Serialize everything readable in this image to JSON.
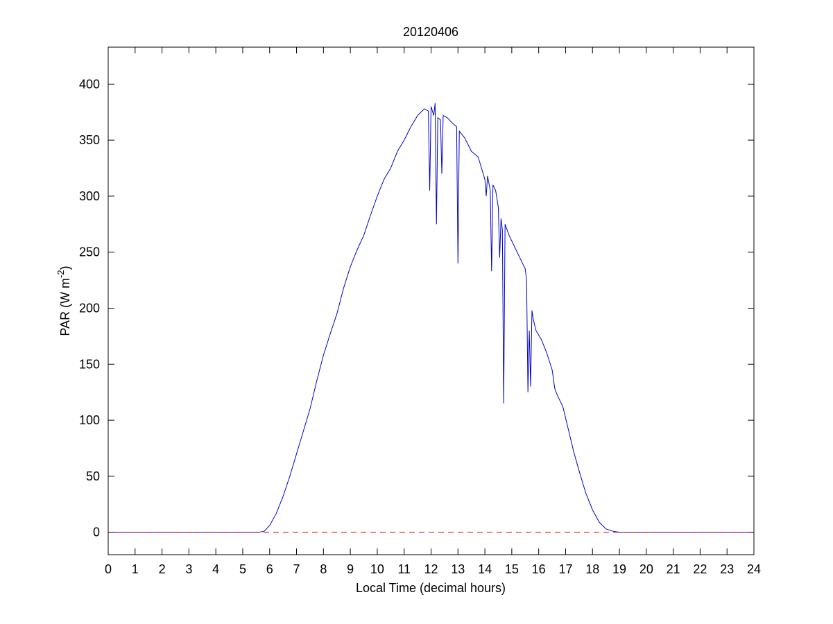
{
  "chart_data": {
    "type": "line",
    "title": "20120406",
    "xlabel": "Local Time (decimal hours)",
    "ylabel_parts": [
      "PAR (W m",
      "-2",
      ")"
    ],
    "x": [
      0,
      1,
      2,
      3,
      4,
      5,
      5.6,
      5.8,
      6,
      6.25,
      6.5,
      6.75,
      7,
      7.25,
      7.5,
      7.75,
      8,
      8.25,
      8.5,
      8.75,
      9,
      9.25,
      9.5,
      9.75,
      10,
      10.25,
      10.5,
      10.75,
      11,
      11.25,
      11.5,
      11.75,
      11.9,
      11.95,
      12,
      12.1,
      12.15,
      12.2,
      12.25,
      12.35,
      12.4,
      12.45,
      12.6,
      12.8,
      12.95,
      13.0,
      13.05,
      13.25,
      13.5,
      13.75,
      14,
      14.05,
      14.1,
      14.2,
      14.25,
      14.3,
      14.4,
      14.5,
      14.55,
      14.6,
      14.65,
      14.7,
      14.75,
      14.9,
      15.1,
      15.3,
      15.5,
      15.55,
      15.6,
      15.65,
      15.7,
      15.75,
      15.8,
      15.9,
      16.1,
      16.3,
      16.5,
      16.6,
      16.7,
      16.9,
      17.1,
      17.3,
      17.5,
      17.75,
      18,
      18.25,
      18.5,
      18.75,
      19,
      20,
      21,
      22,
      23,
      24
    ],
    "values": [
      0,
      0,
      0,
      0,
      0,
      0,
      0,
      1,
      6,
      17,
      32,
      50,
      70,
      90,
      110,
      135,
      158,
      177,
      195,
      218,
      237,
      252,
      265,
      283,
      300,
      315,
      325,
      340,
      350,
      362,
      372,
      378,
      376,
      305,
      380,
      372,
      383,
      275,
      370,
      368,
      320,
      372,
      370,
      365,
      362,
      240,
      358,
      352,
      340,
      335,
      315,
      300,
      318,
      305,
      233,
      310,
      305,
      290,
      245,
      280,
      270,
      115,
      275,
      265,
      255,
      245,
      235,
      225,
      125,
      180,
      130,
      198,
      190,
      180,
      172,
      160,
      145,
      128,
      122,
      112,
      92,
      72,
      55,
      35,
      20,
      9,
      3,
      1,
      0,
      0,
      0,
      0,
      0,
      0
    ],
    "color": "#0000cc",
    "reference_line": {
      "value": 0,
      "color": "#cc0000"
    },
    "xlim": [
      0,
      24
    ],
    "xticks": [
      0,
      1,
      2,
      3,
      4,
      5,
      6,
      7,
      8,
      9,
      10,
      11,
      12,
      13,
      14,
      15,
      16,
      17,
      18,
      19,
      20,
      21,
      22,
      23,
      24
    ],
    "ylim": [
      -20,
      433
    ],
    "yticks": [
      0,
      50,
      100,
      150,
      200,
      250,
      300,
      350,
      400
    ],
    "grid": false
  }
}
